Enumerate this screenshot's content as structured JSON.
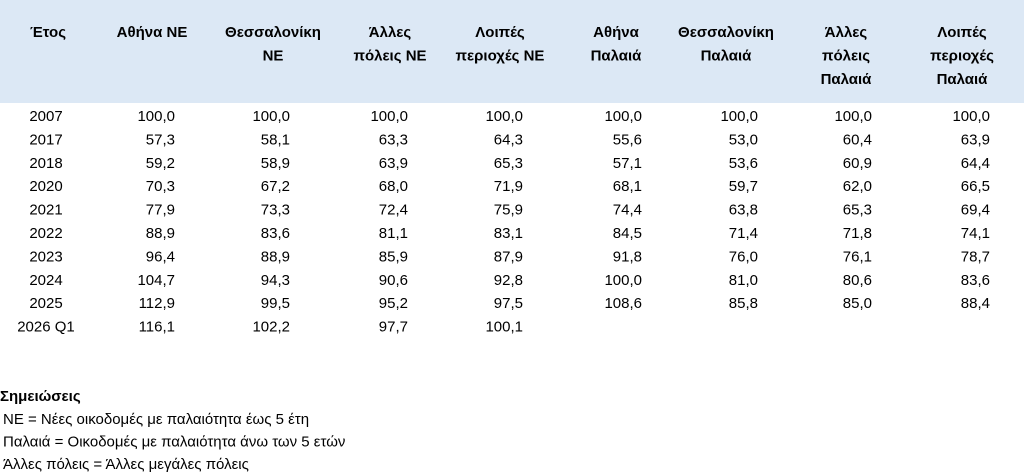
{
  "table": {
    "headers": [
      [
        "Έτος"
      ],
      [
        "Αθήνα ΝΕ"
      ],
      [
        "Θεσσαλονίκη",
        "ΝΕ"
      ],
      [
        "Άλλες",
        "πόλεις ΝΕ"
      ],
      [
        "Λοιπές",
        "περιοχές ΝΕ"
      ],
      [
        "Αθήνα",
        "Παλαιά"
      ],
      [
        "Θεσσαλονίκη",
        "Παλαιά"
      ],
      [
        "Άλλες",
        "πόλεις",
        "Παλαιά"
      ],
      [
        "Λοιπές",
        "περιοχές",
        "Παλαιά"
      ]
    ],
    "rows": [
      [
        "2007",
        "100,0",
        "100,0",
        "100,0",
        "100,0",
        "100,0",
        "100,0",
        "100,0",
        "100,0"
      ],
      [
        "2017",
        "57,3",
        "58,1",
        "63,3",
        "64,3",
        "55,6",
        "53,0",
        "60,4",
        "63,9"
      ],
      [
        "2018",
        "59,2",
        "58,9",
        "63,9",
        "65,3",
        "57,1",
        "53,6",
        "60,9",
        "64,4"
      ],
      [
        "2020",
        "70,3",
        "67,2",
        "68,0",
        "71,9",
        "68,1",
        "59,7",
        "62,0",
        "66,5"
      ],
      [
        "2021",
        "77,9",
        "73,3",
        "72,4",
        "75,9",
        "74,4",
        "63,8",
        "65,3",
        "69,4"
      ],
      [
        "2022",
        "88,9",
        "83,6",
        "81,1",
        "83,1",
        "84,5",
        "71,4",
        "71,8",
        "74,1"
      ],
      [
        "2023",
        "96,4",
        "88,9",
        "85,9",
        "87,9",
        "91,8",
        "76,0",
        "76,1",
        "78,7"
      ],
      [
        "2024",
        "104,7",
        "94,3",
        "90,6",
        "92,8",
        "100,0",
        "81,0",
        "80,6",
        "83,6"
      ],
      [
        "2025",
        "112,9",
        "99,5",
        "95,2",
        "97,5",
        "108,6",
        "85,8",
        "85,0",
        "88,4"
      ],
      [
        "2026 Q1",
        "116,1",
        "102,2",
        "97,7",
        "100,1"
      ]
    ]
  },
  "notes": {
    "title": "Σημειώσεις",
    "lines": [
      "ΝΕ = Νέες οικοδομές με παλαιότητα έως 5 έτη",
      "Παλαιά = Οικοδομές με παλαιότητα άνω των 5 ετών",
      "Άλλες πόλεις = Άλλες μεγάλες πόλεις"
    ]
  }
}
